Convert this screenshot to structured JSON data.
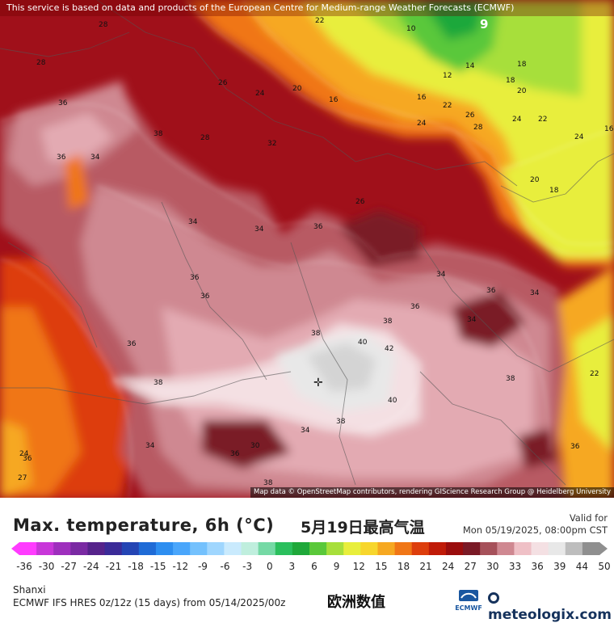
{
  "map": {
    "attribution_top": "This service is based on data and products of the European Centre for Medium-range Weather Forecasts (ECMWF)",
    "attribution_bottom": "Map data © OpenStreetMap contributors, rendering GIScience Research Group @ Heidelberg University",
    "marker_top_right": "9",
    "city_marker": "+",
    "contour_labels": [
      "28",
      "36",
      "38",
      "28",
      "26",
      "24",
      "20",
      "22",
      "16",
      "10",
      "12",
      "14",
      "16",
      "18",
      "18",
      "20",
      "22",
      "24",
      "26",
      "28",
      "24",
      "22",
      "20",
      "18",
      "16",
      "24",
      "36",
      "34",
      "28",
      "32",
      "26",
      "36",
      "34",
      "34",
      "36",
      "36",
      "38",
      "40",
      "42",
      "38",
      "36",
      "34",
      "34",
      "36",
      "38",
      "40",
      "38",
      "34",
      "30",
      "34",
      "36",
      "38",
      "36",
      "38",
      "36",
      "27",
      "24",
      "36",
      "22",
      "34"
    ]
  },
  "legend": {
    "title": "Max. temperature, 6h (°C)",
    "title_cn": "5月19日最高气温",
    "valid_label": "Valid for",
    "valid_time": "Mon 05/19/2025, 08:00pm CST",
    "ticks": [
      "-36",
      "-30",
      "-27",
      "-24",
      "-21",
      "-18",
      "-15",
      "-12",
      "-9",
      "-6",
      "-3",
      "0",
      "3",
      "6",
      "9",
      "12",
      "15",
      "18",
      "21",
      "24",
      "27",
      "30",
      "33",
      "36",
      "39",
      "44",
      "50"
    ],
    "colors": [
      "#ff3cff",
      "#c837d9",
      "#9e2fbd",
      "#7a2aa3",
      "#56238b",
      "#3b2b98",
      "#2445b4",
      "#1f6bd6",
      "#2d8ef0",
      "#4aa6fb",
      "#74c1fd",
      "#9fd6fe",
      "#c9eafd",
      "#bfeedd",
      "#75d9a5",
      "#2bbf5d",
      "#1fa83a",
      "#5ac83a",
      "#a7df3b",
      "#e8ee3c",
      "#f7d62d",
      "#f6a821",
      "#f07616",
      "#dd3e0c",
      "#c01b08",
      "#9a0d0d",
      "#7a1a26",
      "#a6515a",
      "#cf8891",
      "#efc0c6",
      "#f4e0e3",
      "#e8e8e8",
      "#bdbdbd",
      "#8f8f8f"
    ]
  },
  "footer": {
    "region": "Shanxi",
    "model_info": "ECMWF IFS HRES 0z/12z (15 days) from 05/14/2025/00z",
    "cn_name": "欧洲数值",
    "ecmwf_logo_text": "ECMWF",
    "brand": "meteologix.com"
  }
}
